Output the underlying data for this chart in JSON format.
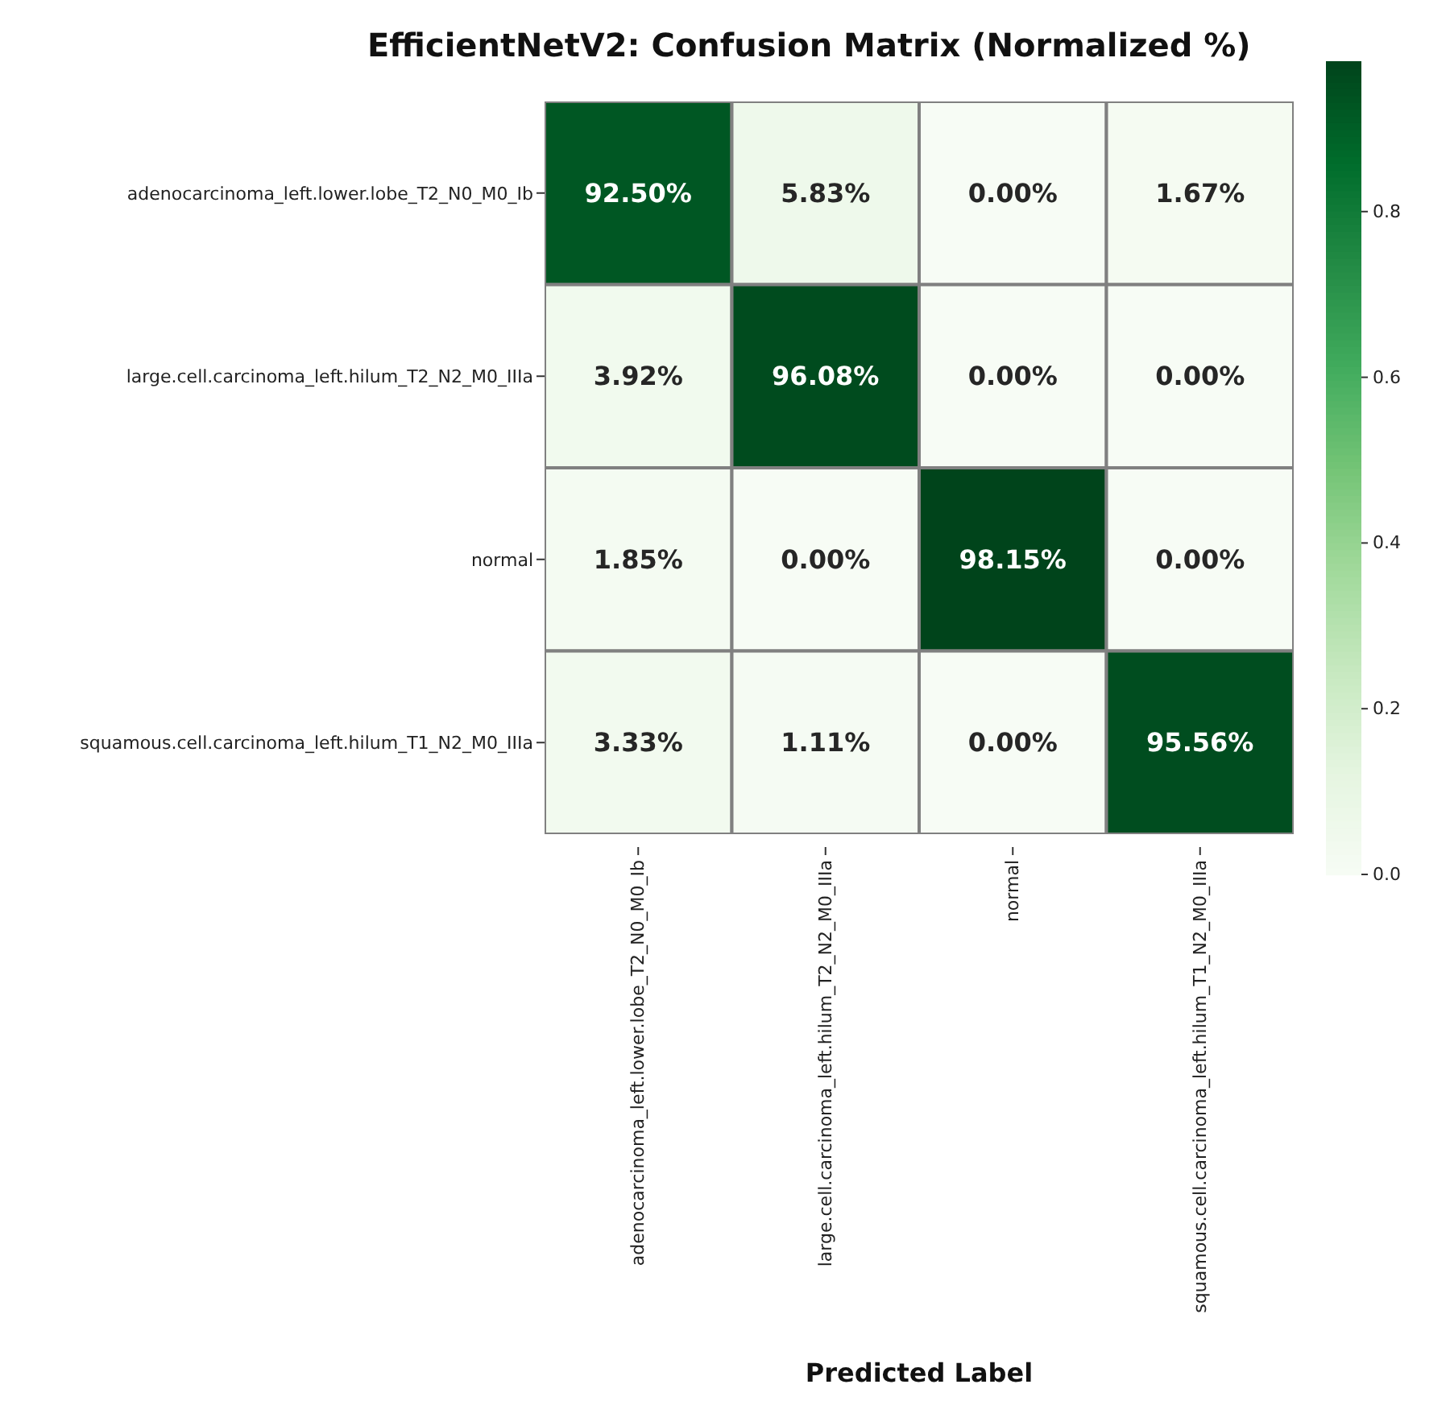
{
  "chart_data": {
    "type": "heatmap",
    "title": "EfficientNetV2: Confusion Matrix (Normalized %)",
    "xlabel": "Predicted Label",
    "categories": [
      "adenocarcinoma_left.lower.lobe_T2_N0_M0_Ib",
      "large.cell.carcinoma_left.hilum_T2_N2_M0_IIIa",
      "normal",
      "squamous.cell.carcinoma_left.hilum_T1_N2_M0_IIIa"
    ],
    "y_categories": [
      "adenocarcinoma_left.lower.lobe_T2_N0_M0_Ib",
      "large.cell.carcinoma_left.hilum_T2_N2_M0_IIIa",
      "normal",
      "squamous.cell.carcinoma_left.hilum_T1_N2_M0_IIIa"
    ],
    "cells": [
      [
        0.925,
        0.0583,
        0,
        0.0167
      ],
      [
        0.0392,
        0.9608,
        0,
        0
      ],
      [
        0.0185,
        0,
        0.9815,
        0
      ],
      [
        0.0333,
        0.0111,
        0,
        0.9556
      ]
    ],
    "cell_labels": [
      [
        "92.50%",
        "5.83%",
        "0.00%",
        "1.67%"
      ],
      [
        "3.92%",
        "96.08%",
        "0.00%",
        "0.00%"
      ],
      [
        "1.85%",
        "0.00%",
        "98.15%",
        "0.00%"
      ],
      [
        "3.33%",
        "1.11%",
        "0.00%",
        "95.56%"
      ]
    ],
    "clim": [
      0,
      0.9815
    ],
    "cticks": [
      {
        "value": 0,
        "label": "0.0"
      },
      {
        "value": 0.2,
        "label": "0.2"
      },
      {
        "value": 0.4,
        "label": "0.4"
      },
      {
        "value": 0.6,
        "label": "0.6"
      },
      {
        "value": 0.8,
        "label": "0.8"
      }
    ]
  }
}
